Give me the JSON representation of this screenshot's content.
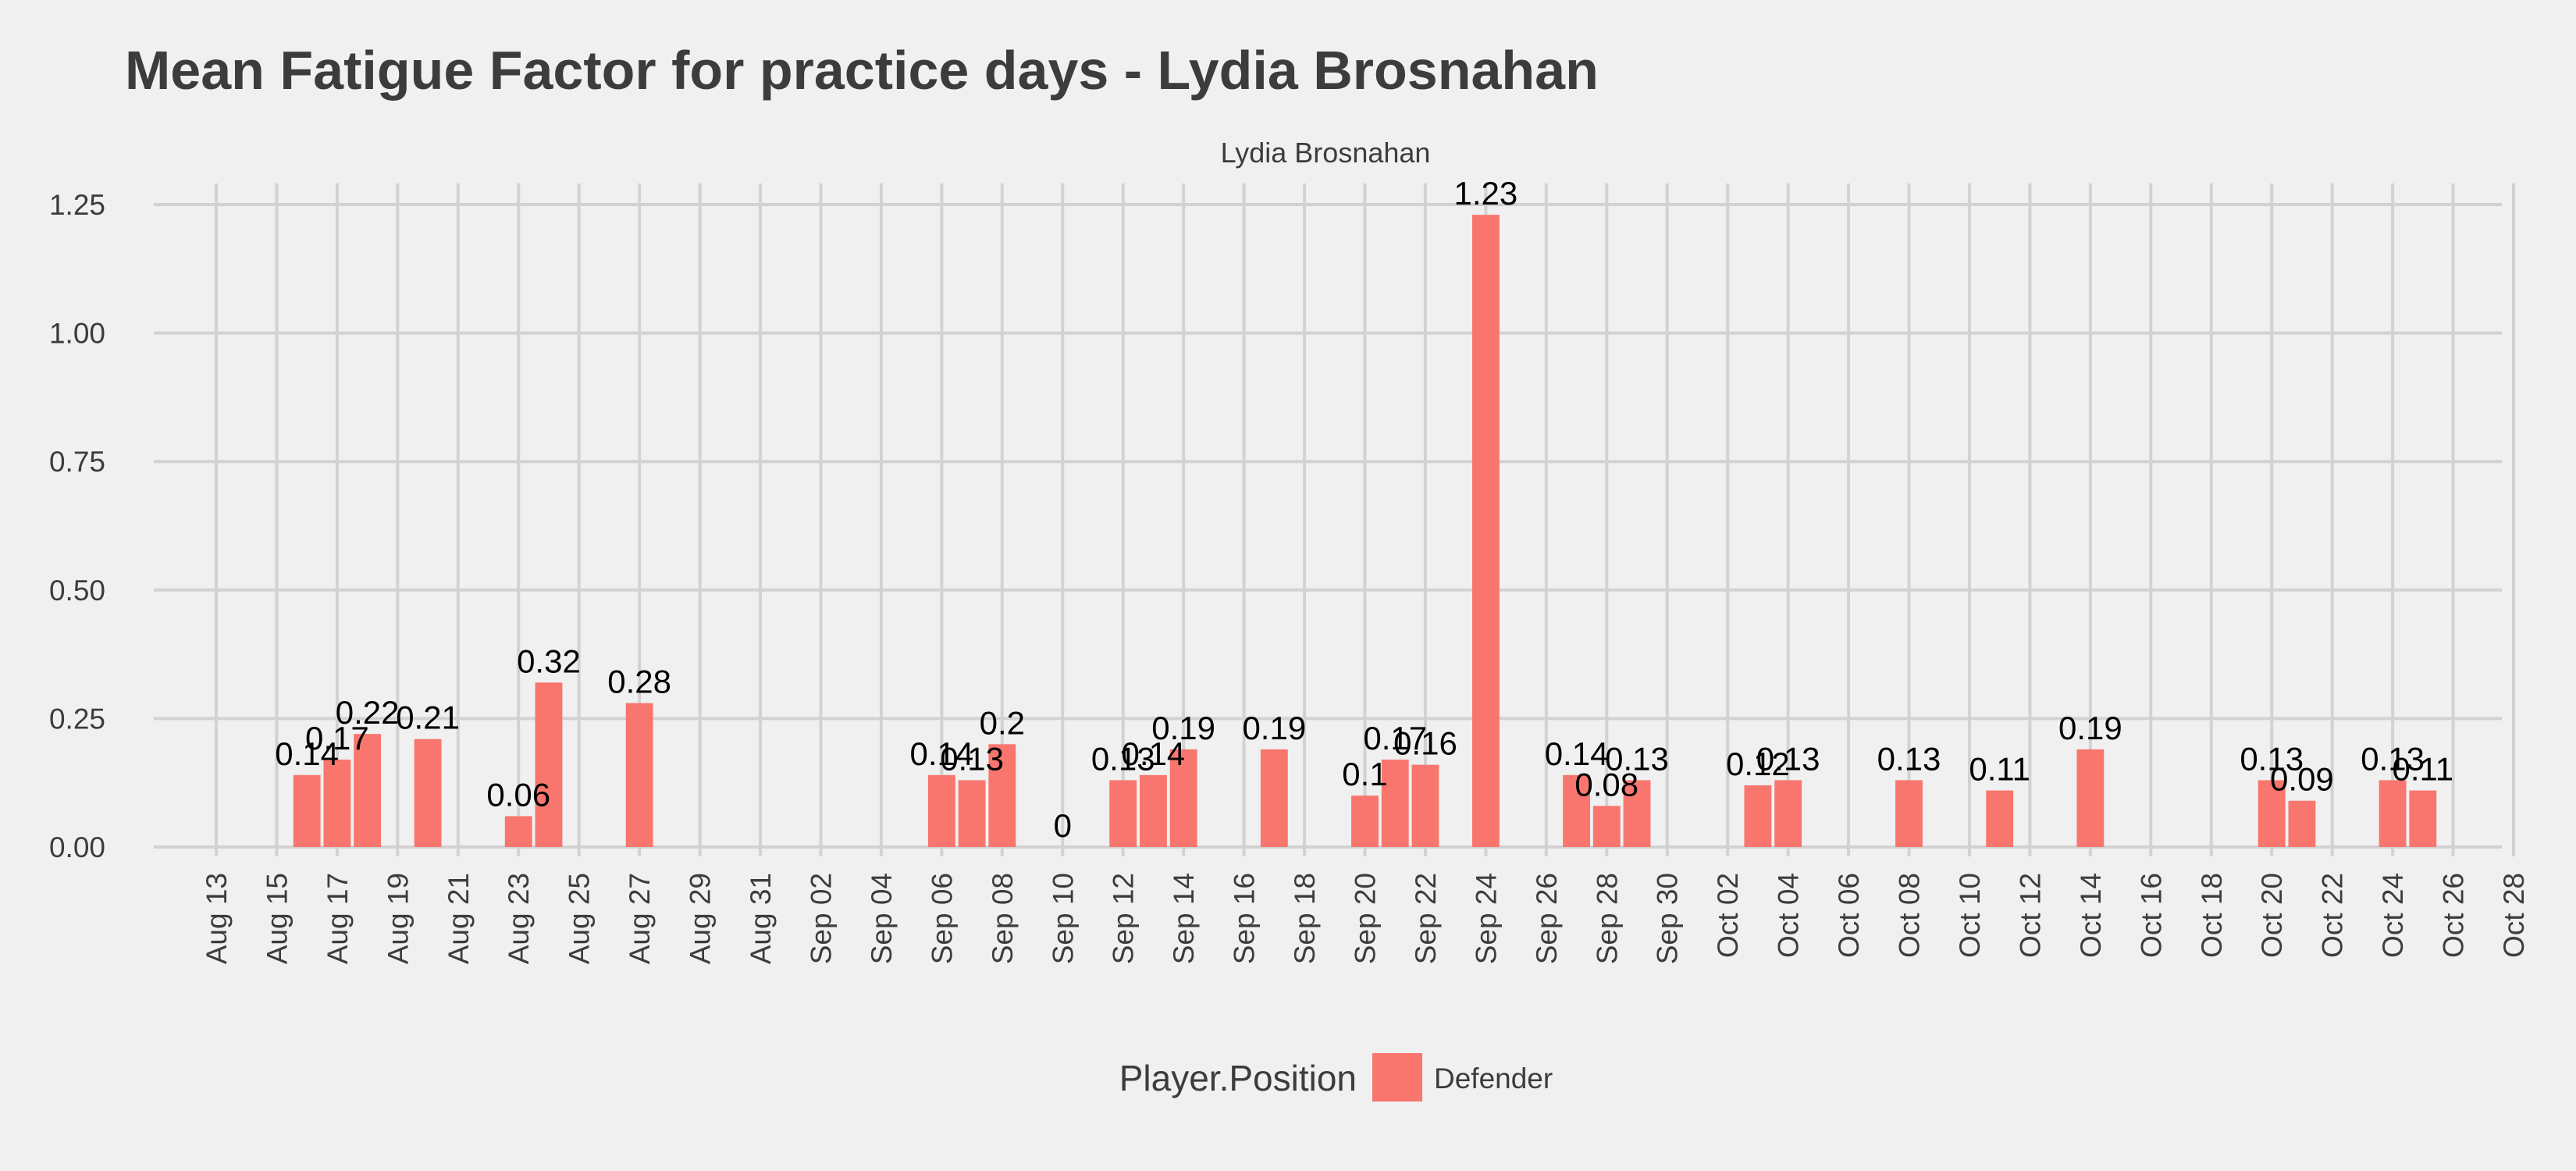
{
  "chart_data": {
    "type": "bar",
    "title": "Mean Fatigue Factor for practice days -  Lydia Brosnahan",
    "facet_label": "Lydia Brosnahan",
    "xlabel": "",
    "ylabel": "",
    "x_axis": {
      "type": "date",
      "start": "2019-08-13",
      "end": "2019-10-28",
      "tick_interval_days": 2,
      "tick_labels": [
        "Aug 13",
        "Aug 15",
        "Aug 17",
        "Aug 19",
        "Aug 21",
        "Aug 23",
        "Aug 25",
        "Aug 27",
        "Aug 29",
        "Aug 31",
        "Sep 02",
        "Sep 04",
        "Sep 06",
        "Sep 08",
        "Sep 10",
        "Sep 12",
        "Sep 14",
        "Sep 16",
        "Sep 18",
        "Sep 20",
        "Sep 22",
        "Sep 24",
        "Sep 26",
        "Sep 28",
        "Sep 30",
        "Oct 02",
        "Oct 04",
        "Oct 06",
        "Oct 08",
        "Oct 10",
        "Oct 12",
        "Oct 14",
        "Oct 16",
        "Oct 18",
        "Oct 20",
        "Oct 22",
        "Oct 24",
        "Oct 26",
        "Oct 28"
      ]
    },
    "y_axis": {
      "ylim": [
        0,
        1.25
      ],
      "ticks": [
        0,
        0.25,
        0.5,
        0.75,
        1.0,
        1.25
      ],
      "tick_labels": [
        "0.00",
        "0.25",
        "0.50",
        "0.75",
        "1.00",
        "1.25"
      ]
    },
    "grid": true,
    "legend": {
      "title": "Player.Position",
      "placement": "bottom",
      "entries": [
        {
          "label": "Defender",
          "color": "#f8766d"
        }
      ]
    },
    "series": [
      {
        "name": "Defender",
        "color": "#f8766d",
        "points": [
          {
            "date": "2019-08-16",
            "value": 0.14,
            "label": "0.14"
          },
          {
            "date": "2019-08-17",
            "value": 0.17,
            "label": "0.17"
          },
          {
            "date": "2019-08-18",
            "value": 0.22,
            "label": "0.22"
          },
          {
            "date": "2019-08-20",
            "value": 0.21,
            "label": "0.21"
          },
          {
            "date": "2019-08-23",
            "value": 0.06,
            "label": "0.06"
          },
          {
            "date": "2019-08-24",
            "value": 0.32,
            "label": "0.32"
          },
          {
            "date": "2019-08-27",
            "value": 0.28,
            "label": "0.28"
          },
          {
            "date": "2019-09-06",
            "value": 0.14,
            "label": "0.14"
          },
          {
            "date": "2019-09-07",
            "value": 0.13,
            "label": "0.13"
          },
          {
            "date": "2019-09-08",
            "value": 0.2,
            "label": "0.2"
          },
          {
            "date": "2019-09-10",
            "value": 0,
            "label": "0"
          },
          {
            "date": "2019-09-12",
            "value": 0.13,
            "label": "0.13"
          },
          {
            "date": "2019-09-13",
            "value": 0.14,
            "label": "0.14"
          },
          {
            "date": "2019-09-14",
            "value": 0.19,
            "label": "0.19"
          },
          {
            "date": "2019-09-17",
            "value": 0.19,
            "label": "0.19"
          },
          {
            "date": "2019-09-20",
            "value": 0.1,
            "label": "0.1"
          },
          {
            "date": "2019-09-21",
            "value": 0.17,
            "label": "0.17"
          },
          {
            "date": "2019-09-22",
            "value": 0.16,
            "label": "0.16"
          },
          {
            "date": "2019-09-24",
            "value": 1.23,
            "label": "1.23"
          },
          {
            "date": "2019-09-27",
            "value": 0.14,
            "label": "0.14"
          },
          {
            "date": "2019-09-28",
            "value": 0.08,
            "label": "0.08"
          },
          {
            "date": "2019-09-29",
            "value": 0.13,
            "label": "0.13"
          },
          {
            "date": "2019-10-03",
            "value": 0.12,
            "label": "0.12"
          },
          {
            "date": "2019-10-04",
            "value": 0.13,
            "label": "0.13"
          },
          {
            "date": "2019-10-08",
            "value": 0.13,
            "label": "0.13"
          },
          {
            "date": "2019-10-11",
            "value": 0.11,
            "label": "0.11"
          },
          {
            "date": "2019-10-14",
            "value": 0.19,
            "label": "0.19"
          },
          {
            "date": "2019-10-20",
            "value": 0.13,
            "label": "0.13"
          },
          {
            "date": "2019-10-21",
            "value": 0.09,
            "label": "0.09"
          },
          {
            "date": "2019-10-24",
            "value": 0.13,
            "label": "0.13"
          },
          {
            "date": "2019-10-25",
            "value": 0.11,
            "label": "0.11"
          }
        ]
      }
    ]
  }
}
